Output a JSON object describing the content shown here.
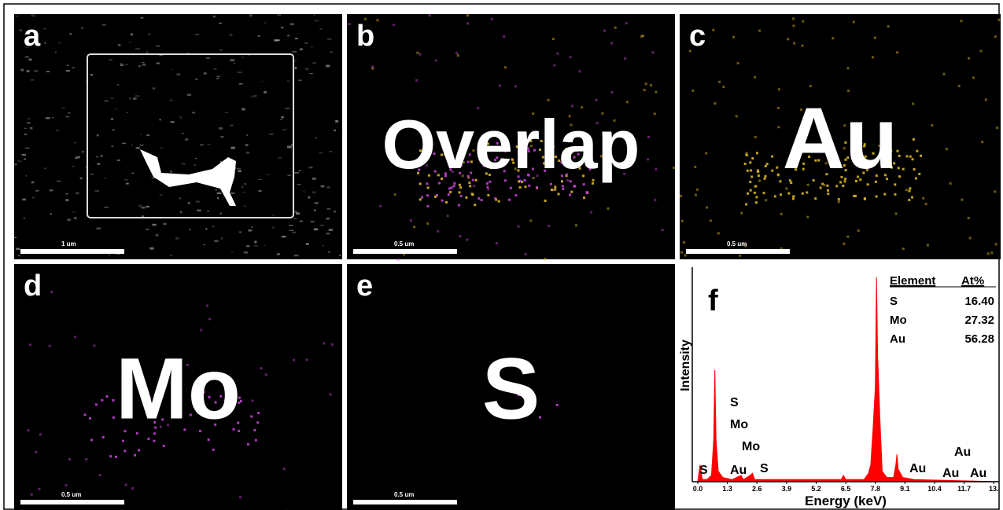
{
  "panels": [
    {
      "label": "a",
      "scale_bar": "1 um"
    },
    {
      "label": "b",
      "title": "Overlap",
      "scale_bar": "0.5 um"
    },
    {
      "label": "c",
      "title": "Au",
      "scale_bar": "0.5 um"
    },
    {
      "label": "d",
      "title": "Mo",
      "scale_bar": "0.5 um"
    },
    {
      "label": "e",
      "title": "S",
      "scale_bar": "0.5 um"
    }
  ],
  "chart_data": {
    "type": "area",
    "panel_label": "f",
    "x_label": "Energy (keV)",
    "y_label": "Intensity",
    "x": [
      0.0,
      0.1,
      0.2,
      0.4,
      0.6,
      0.7,
      0.75,
      0.8,
      0.9,
      1.1,
      1.5,
      1.9,
      2.0,
      2.3,
      2.4,
      2.5,
      3.0,
      5.5,
      6.3,
      6.4,
      6.5,
      7.3,
      7.5,
      7.6,
      7.7,
      7.8,
      7.85,
      7.9,
      8.0,
      8.1,
      8.3,
      8.6,
      8.7,
      8.75,
      8.8,
      9.0,
      9.5,
      13.2
    ],
    "values": [
      0,
      8,
      1,
      1,
      3,
      20,
      53,
      20,
      5,
      2,
      1,
      3,
      1,
      3,
      4,
      1,
      1,
      1,
      1,
      3,
      1,
      1,
      4,
      8,
      25,
      45,
      97,
      60,
      30,
      5,
      2,
      2,
      8,
      13,
      6,
      2,
      1,
      0
    ],
    "color": "#ff0000",
    "xlim": [
      0,
      13.2
    ],
    "ylim": [
      0,
      100
    ],
    "xticks": [
      {
        "value": 0,
        "label": "0.0"
      },
      1.3,
      2.6,
      3.9,
      5.2,
      6.5,
      7.8,
      9.1,
      10.4,
      11.7,
      {
        "value": 13.0,
        "label": "13."
      }
    ],
    "annotations": [
      "S",
      "S",
      "Mo",
      "Mo",
      "Au",
      "S",
      "Au",
      "Au",
      "Au",
      "Au"
    ],
    "table": {
      "header": [
        "Element",
        "At%"
      ],
      "rows": [
        [
          "S",
          "16.40"
        ],
        [
          "Mo",
          "27.32"
        ],
        [
          "Au",
          "56.28"
        ]
      ]
    }
  }
}
